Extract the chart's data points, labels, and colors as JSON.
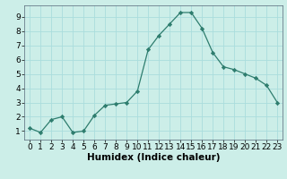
{
  "x": [
    0,
    1,
    2,
    3,
    4,
    5,
    6,
    7,
    8,
    9,
    10,
    11,
    12,
    13,
    14,
    15,
    16,
    17,
    18,
    19,
    20,
    21,
    22,
    23
  ],
  "y": [
    1.2,
    0.9,
    1.8,
    2.0,
    0.9,
    1.0,
    2.1,
    2.8,
    2.9,
    3.0,
    3.8,
    6.7,
    7.7,
    8.5,
    9.3,
    9.3,
    8.2,
    6.5,
    5.5,
    5.3,
    5.0,
    4.7,
    4.2,
    3.0
  ],
  "line_color": "#2e7d6e",
  "marker": "D",
  "marker_size": 2.2,
  "bg_color": "#cceee8",
  "grid_color": "#aadddd",
  "xlabel": "Humidex (Indice chaleur)",
  "xlim": [
    -0.5,
    23.5
  ],
  "ylim": [
    0.4,
    9.8
  ],
  "yticks": [
    1,
    2,
    3,
    4,
    5,
    6,
    7,
    8,
    9
  ],
  "xticks": [
    0,
    1,
    2,
    3,
    4,
    5,
    6,
    7,
    8,
    9,
    10,
    11,
    12,
    13,
    14,
    15,
    16,
    17,
    18,
    19,
    20,
    21,
    22,
    23
  ],
  "xlabel_fontsize": 7.5,
  "tick_fontsize": 6.5
}
